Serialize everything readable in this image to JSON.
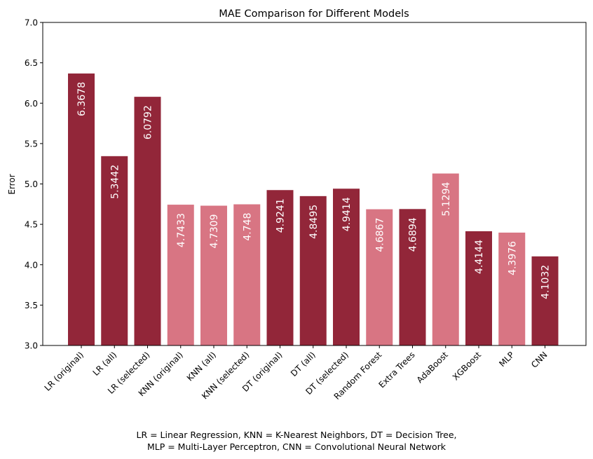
{
  "chart_data": {
    "type": "bar",
    "title": "MAE Comparison for Different Models",
    "xlabel": "",
    "ylabel": "Error",
    "ylim": [
      3.0,
      7.0
    ],
    "yticks": [
      "3.0",
      "3.5",
      "4.0",
      "4.5",
      "5.0",
      "5.5",
      "6.0",
      "6.5",
      "7.0"
    ],
    "grid": false,
    "categories": [
      "LR (original)",
      "LR (all)",
      "LR (selected)",
      "KNN (original)",
      "KNN (all)",
      "KNN (selected)",
      "DT (original)",
      "DT (all)",
      "DT (selected)",
      "Random Forest",
      "Extra Trees",
      "AdaBoost",
      "XGBoost",
      "MLP",
      "CNN"
    ],
    "values": [
      6.3678,
      5.3442,
      6.0792,
      4.7433,
      4.7309,
      4.748,
      4.9241,
      4.8495,
      4.9414,
      4.6867,
      4.6894,
      5.1294,
      4.4144,
      4.3976,
      4.1032
    ],
    "value_labels": [
      "6.3678",
      "5.3442",
      "6.0792",
      "4.7433",
      "4.7309",
      "4.748",
      "4.9241",
      "4.8495",
      "4.9414",
      "4.6867",
      "4.6894",
      "5.1294",
      "4.4144",
      "4.3976",
      "4.1032"
    ],
    "bar_color_index": [
      0,
      0,
      0,
      1,
      1,
      1,
      0,
      0,
      0,
      1,
      0,
      1,
      0,
      1,
      0
    ],
    "colors": [
      "#922639",
      "#d87583"
    ],
    "label_color": "#ffffff"
  },
  "footnote": {
    "line1": "LR = Linear Regression, KNN = K-Nearest Neighbors, DT = Decision Tree,",
    "line2": "MLP = Multi-Layer Perceptron, CNN = Convolutional Neural Network"
  }
}
